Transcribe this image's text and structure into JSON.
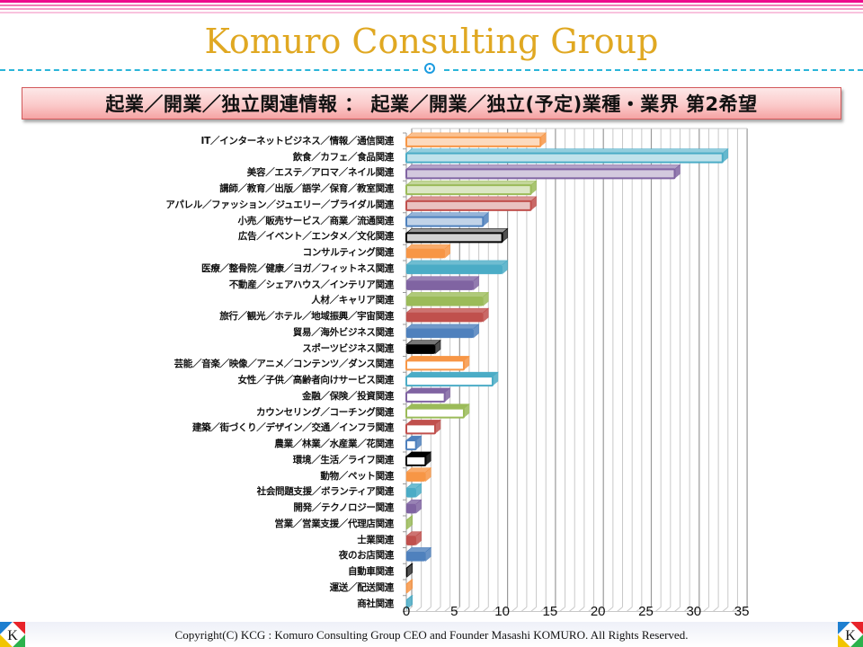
{
  "header": {
    "brand": "Komuro Consulting Group",
    "slide_title": "起業／開業／独立関連情報 ： 起業／開業／独立(予定)業種・業界 第2希望"
  },
  "footer": {
    "copyright": "Copyright(C)  KCG : Komuro Consulting Group   CEO and Founder   Masashi KOMURO. All Rights Reserved.",
    "logo_letter": "K"
  },
  "colors": {
    "top_stripe": "#ee0a8c",
    "brand_text": "#e0a822",
    "divider": "#2ab5d9",
    "title_border": "#d2595b"
  },
  "chart_data": {
    "type": "bar",
    "orientation": "horizontal",
    "style": "3d-clustered",
    "title": "起業／開業／独立(予定)業種・業界 第2希望",
    "xlabel": "",
    "ylabel": "",
    "xlim": [
      0,
      35
    ],
    "x_ticks": [
      "0",
      "5",
      "10",
      "15",
      "20",
      "25",
      "30",
      "35"
    ],
    "grid": true,
    "legend": "none",
    "categories": [
      "IT／インターネットビジネス／情報／通信関連",
      "飲食／カフェ／食品関連",
      "美容／エステ／アロマ／ネイル関連",
      "講師／教育／出版／語学／保育／教室関連",
      "アパレル／ファッション／ジュエリー／ブライダル関連",
      "小売／販売サービス／商業／流通関連",
      "広告／イベント／エンタメ／文化関連",
      "コンサルティング関連",
      "医療／整骨院／健康／ヨガ／フィットネス関連",
      "不動産／シェアハウス／インテリア関連",
      "人材／キャリア関連",
      "旅行／観光／ホテル／地域振興／宇宙関連",
      "貿易／海外ビジネス関連",
      "スポーツビジネス関連",
      "芸能／音楽／映像／アニメ／コンテンツ／ダンス関連",
      "女性／子供／高齢者向けサービス関連",
      "金融／保険／投資関連",
      "カウンセリング／コーチング関連",
      "建築／街づくり／デザイン／交通／インフラ関連",
      "農業／林業／水産業／花関連",
      "環境／生活／ライフ関連",
      "動物／ペット関連",
      "社会問題支援／ボランティア関連",
      "開発／テクノロジー関連",
      "営業／営業支援／代理店関連",
      "士業関連",
      "夜のお店関連",
      "自動車関連",
      "運送／配送関連",
      "商社関連"
    ],
    "values": [
      14,
      33,
      28,
      13,
      13,
      8,
      10,
      4,
      10,
      7,
      8,
      8,
      7,
      3,
      6,
      9,
      4,
      6,
      3,
      1,
      2,
      2,
      1,
      1,
      0,
      1,
      2,
      0,
      0,
      0
    ],
    "bar_colors": [
      "#f79646",
      "#4bacc6",
      "#8064a2",
      "#9bbb59",
      "#c0504d",
      "#4f81bd",
      "#000000",
      "#f79646",
      "#4bacc6",
      "#8064a2",
      "#9bbb59",
      "#c0504d",
      "#4f81bd",
      "#000000",
      "#f79646",
      "#4bacc6",
      "#8064a2",
      "#9bbb59",
      "#c0504d",
      "#4f81bd",
      "#000000",
      "#f79646",
      "#4bacc6",
      "#8064a2",
      "#9bbb59",
      "#c0504d",
      "#4f81bd",
      "#000000",
      "#f79646",
      "#4bacc6"
    ],
    "bar_fill_style": [
      "light",
      "light",
      "light",
      "light",
      "light",
      "light",
      "light",
      "solid",
      "solid",
      "solid",
      "solid",
      "solid",
      "solid",
      "solid",
      "outline",
      "outline",
      "outline",
      "outline",
      "outline",
      "outline",
      "outline",
      "solid",
      "solid",
      "solid",
      "solid",
      "solid",
      "solid",
      "solid",
      "solid",
      "solid"
    ]
  }
}
